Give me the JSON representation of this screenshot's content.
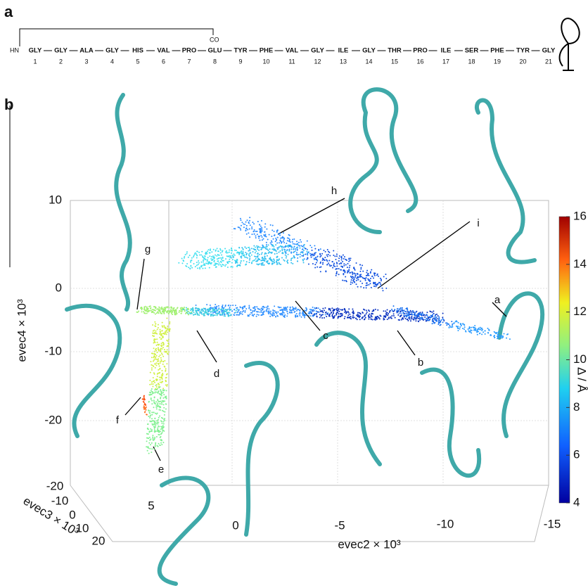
{
  "panel_a": {
    "label": "a",
    "hn": "HN",
    "co": "CO",
    "residues": [
      "GLY",
      "GLY",
      "ALA",
      "GLY",
      "HIS",
      "VAL",
      "PRO",
      "GLU",
      "TYR",
      "PHE",
      "VAL",
      "GLY",
      "ILE",
      "GLY",
      "THR",
      "PRO",
      "ILE",
      "SER",
      "PHE",
      "TYR",
      "GLY"
    ],
    "numbers": [
      1,
      2,
      3,
      4,
      5,
      6,
      7,
      8,
      9,
      10,
      11,
      12,
      13,
      14,
      15,
      16,
      17,
      18,
      19,
      20,
      21
    ]
  },
  "panel_b": {
    "label": "b",
    "colorbar": {
      "label": "Δ / Å",
      "ticks": [
        16,
        14,
        12,
        10,
        8,
        6,
        4
      ]
    },
    "evec4": {
      "label": "evec4 × 10³",
      "ticks": [
        10,
        0,
        -10,
        -20
      ]
    },
    "evec3": {
      "label": "evec3 × 10³",
      "ticks": [
        -20,
        -10,
        0,
        10,
        20
      ]
    },
    "evec2": {
      "label": "evec2 × 10³",
      "ticks": [
        5,
        0,
        -5,
        -10,
        -15
      ]
    },
    "structure_labels": [
      "a",
      "b",
      "c",
      "d",
      "e",
      "f",
      "g",
      "h",
      "i"
    ]
  }
}
